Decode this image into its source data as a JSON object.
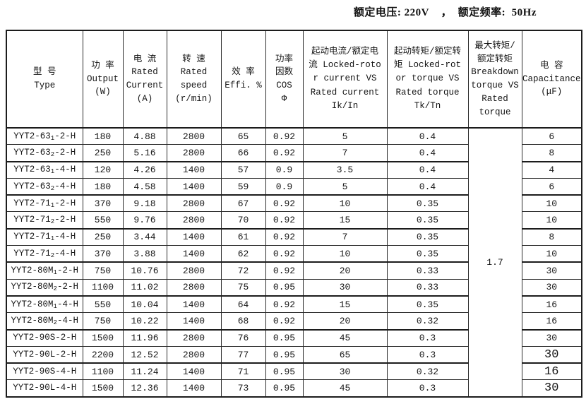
{
  "page": {
    "top_note": "额定电压: 220V    ，  额定频率:  50Hz"
  },
  "table": {
    "headers": [
      {
        "id": "type",
        "text": "型 号\nType"
      },
      {
        "id": "output",
        "text": "功 率\nOutput\n(W)"
      },
      {
        "id": "current",
        "text": "电 流\nRated\nCurrent\n(A)"
      },
      {
        "id": "speed",
        "text": "转 速\nRated\nspeed\n(r/min)"
      },
      {
        "id": "efficiency",
        "text": "效 率\nEffi. %"
      },
      {
        "id": "cos",
        "text": "功率\n因数\nCOS\nΦ"
      },
      {
        "id": "ik_in",
        "text": "起动电流/额定电流 Locked-rotor current VS Rated current Ik/In"
      },
      {
        "id": "tk_tn",
        "text": "起动转矩/额定转矩 Locked-rotor torque VS Rated torque Tk/Tn"
      },
      {
        "id": "breakdown",
        "text": "最大转矩/\n额定转矩\nBreakdown\ntorque VS\nRated\ntorque"
      },
      {
        "id": "capacitance",
        "text": "电 容\nCapacitance\n(μF)"
      }
    ],
    "breakdown_value": "1.7",
    "rows": [
      {
        "model_pre": "YYT2-63",
        "model_sub": "1",
        "model_post": "-2-H",
        "output": "180",
        "current": "4.88",
        "speed": "2800",
        "efficiency": "65",
        "cos": "0.92",
        "ik_in": "5",
        "tk_tn": "0.4",
        "capacitance": "6",
        "cap_large": false
      },
      {
        "model_pre": "YYT2-63",
        "model_sub": "2",
        "model_post": "-2-H",
        "output": "250",
        "current": "5.16",
        "speed": "2800",
        "efficiency": "66",
        "cos": "0.92",
        "ik_in": "7",
        "tk_tn": "0.4",
        "capacitance": "8",
        "cap_large": false
      },
      {
        "model_pre": "YYT2-63",
        "model_sub": "1",
        "model_post": "-4-H",
        "output": "120",
        "current": "4.26",
        "speed": "1400",
        "efficiency": "57",
        "cos": "0.9",
        "ik_in": "3.5",
        "tk_tn": "0.4",
        "capacitance": "4",
        "cap_large": false
      },
      {
        "model_pre": "YYT2-63",
        "model_sub": "2",
        "model_post": "-4-H",
        "output": "180",
        "current": "4.58",
        "speed": "1400",
        "efficiency": "59",
        "cos": "0.9",
        "ik_in": "5",
        "tk_tn": "0.4",
        "capacitance": "6",
        "cap_large": false
      },
      {
        "model_pre": "YYT2-71",
        "model_sub": "1",
        "model_post": "-2-H",
        "output": "370",
        "current": "9.18",
        "speed": "2800",
        "efficiency": "67",
        "cos": "0.92",
        "ik_in": "10",
        "tk_tn": "0.35",
        "capacitance": "10",
        "cap_large": false
      },
      {
        "model_pre": "YYT2-71",
        "model_sub": "2",
        "model_post": "-2-H",
        "output": "550",
        "current": "9.76",
        "speed": "2800",
        "efficiency": "70",
        "cos": "0.92",
        "ik_in": "15",
        "tk_tn": "0.35",
        "capacitance": "10",
        "cap_large": false
      },
      {
        "model_pre": "YYT2-71",
        "model_sub": "1",
        "model_post": "-4-H",
        "output": "250",
        "current": "3.44",
        "speed": "1400",
        "efficiency": "61",
        "cos": "0.92",
        "ik_in": "7",
        "tk_tn": "0.35",
        "capacitance": "8",
        "cap_large": false
      },
      {
        "model_pre": "YYT2-71",
        "model_sub": "2",
        "model_post": "-4-H",
        "output": "370",
        "current": "3.88",
        "speed": "1400",
        "efficiency": "62",
        "cos": "0.92",
        "ik_in": "10",
        "tk_tn": "0.35",
        "capacitance": "10",
        "cap_large": false
      },
      {
        "model_pre": "YYT2-80M",
        "model_sub": "1",
        "model_post": "-2-H",
        "output": "750",
        "current": "10.76",
        "speed": "2800",
        "efficiency": "72",
        "cos": "0.92",
        "ik_in": "20",
        "tk_tn": "0.33",
        "capacitance": "30",
        "cap_large": false
      },
      {
        "model_pre": "YYT2-80M",
        "model_sub": "2",
        "model_post": "-2-H",
        "output": "1100",
        "current": "11.02",
        "speed": "2800",
        "efficiency": "75",
        "cos": "0.95",
        "ik_in": "30",
        "tk_tn": "0.33",
        "capacitance": "30",
        "cap_large": false
      },
      {
        "model_pre": "YYT2-80M",
        "model_sub": "1",
        "model_post": "-4-H",
        "output": "550",
        "current": "10.04",
        "speed": "1400",
        "efficiency": "64",
        "cos": "0.92",
        "ik_in": "15",
        "tk_tn": "0.35",
        "capacitance": "16",
        "cap_large": false
      },
      {
        "model_pre": "YYT2-80M",
        "model_sub": "2",
        "model_post": "-4-H",
        "output": "750",
        "current": "10.22",
        "speed": "1400",
        "efficiency": "68",
        "cos": "0.92",
        "ik_in": "20",
        "tk_tn": "0.32",
        "capacitance": "16",
        "cap_large": false
      },
      {
        "model_pre": "YYT2-90S",
        "model_sub": "",
        "model_post": "-2-H",
        "output": "1500",
        "current": "11.96",
        "speed": "2800",
        "efficiency": "76",
        "cos": "0.95",
        "ik_in": "45",
        "tk_tn": "0.3",
        "capacitance": "30",
        "cap_large": false
      },
      {
        "model_pre": "YYT2-90L",
        "model_sub": "",
        "model_post": "-2-H",
        "output": "2200",
        "current": "12.52",
        "speed": "2800",
        "efficiency": "77",
        "cos": "0.95",
        "ik_in": "65",
        "tk_tn": "0.3",
        "capacitance": "30",
        "cap_large": true
      },
      {
        "model_pre": "YYT2-90S",
        "model_sub": "",
        "model_post": "-4-H",
        "output": "1100",
        "current": "11.24",
        "speed": "1400",
        "efficiency": "71",
        "cos": "0.95",
        "ik_in": "30",
        "tk_tn": "0.32",
        "capacitance": "16",
        "cap_large": true
      },
      {
        "model_pre": "YYT2-90L",
        "model_sub": "",
        "model_post": "-4-H",
        "output": "1500",
        "current": "12.36",
        "speed": "1400",
        "efficiency": "73",
        "cos": "0.95",
        "ik_in": "45",
        "tk_tn": "0.3",
        "capacitance": "30",
        "cap_large": true
      }
    ]
  }
}
